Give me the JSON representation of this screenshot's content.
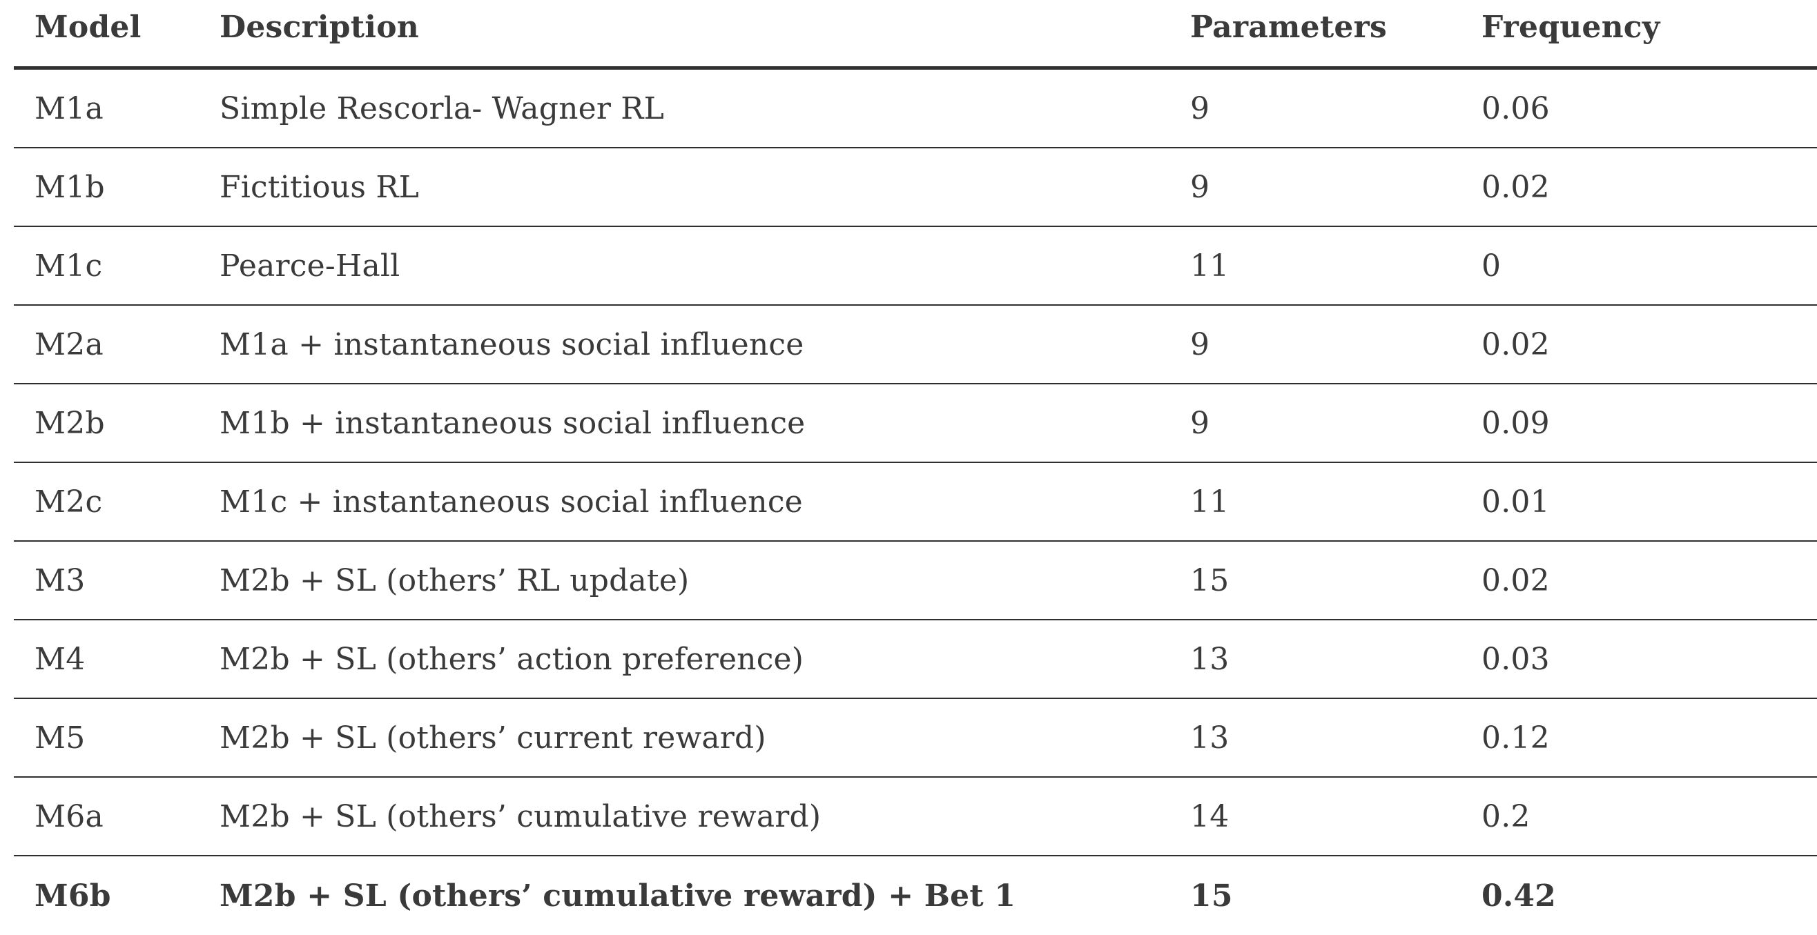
{
  "headers": {
    "model": "Model",
    "description": "Description",
    "parameters": "Parameters",
    "frequency": "Frequency"
  },
  "rows": [
    {
      "model": "M1a",
      "description": "Simple Rescorla- Wagner RL",
      "parameters": "9",
      "frequency": "0.06"
    },
    {
      "model": "M1b",
      "description": "Fictitious RL",
      "parameters": "9",
      "frequency": "0.02"
    },
    {
      "model": "M1c",
      "description": "Pearce-Hall",
      "parameters": "11",
      "frequency": "0"
    },
    {
      "model": "M2a",
      "description": "M1a + instantaneous social influence",
      "parameters": "9",
      "frequency": "0.02"
    },
    {
      "model": "M2b",
      "description": "M1b + instantaneous social influence",
      "parameters": "9",
      "frequency": "0.09"
    },
    {
      "model": "M2c",
      "description": "M1c + instantaneous social influence",
      "parameters": "11",
      "frequency": "0.01"
    },
    {
      "model": "M3",
      "description": "M2b + SL (others’ RL update)",
      "parameters": "15",
      "frequency": "0.02"
    },
    {
      "model": "M4",
      "description": "M2b + SL (others’ action preference)",
      "parameters": "13",
      "frequency": "0.03"
    },
    {
      "model": "M5",
      "description": "M2b + SL (others’ current reward)",
      "parameters": "13",
      "frequency": "0.12"
    },
    {
      "model": "M6a",
      "description": "M2b + SL (others’ cumulative reward)",
      "parameters": "14",
      "frequency": "0.2"
    },
    {
      "model": "M6b",
      "description": "M2b + SL (others’ cumulative reward) + Bet 1",
      "parameters": "15",
      "frequency": "0.42"
    }
  ]
}
